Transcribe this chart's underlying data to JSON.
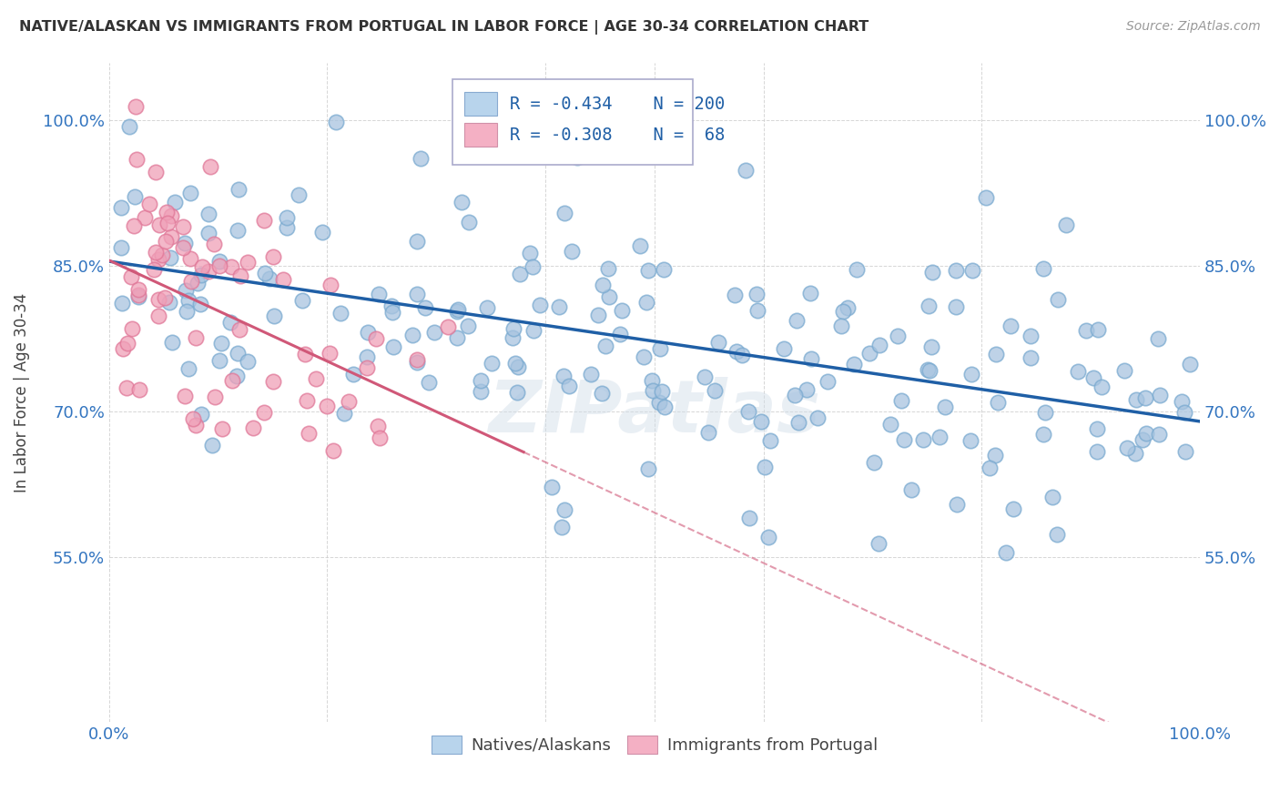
{
  "title": "NATIVE/ALASKAN VS IMMIGRANTS FROM PORTUGAL IN LABOR FORCE | AGE 30-34 CORRELATION CHART",
  "source": "Source: ZipAtlas.com",
  "ylabel": "In Labor Force | Age 30-34",
  "xlim": [
    0.0,
    1.0
  ],
  "ylim": [
    0.38,
    1.06
  ],
  "ytick_positions": [
    0.55,
    0.7,
    0.85,
    1.0
  ],
  "ytick_labels": [
    "55.0%",
    "70.0%",
    "85.0%",
    "100.0%"
  ],
  "blue_color": "#a8c4e0",
  "pink_color": "#f0a0b8",
  "blue_edge_color": "#7aaad0",
  "pink_edge_color": "#e07898",
  "blue_line_color": "#1f5fa6",
  "pink_line_color": "#d05878",
  "legend_blue_fill": "#b8d4ec",
  "legend_pink_fill": "#f4b0c4",
  "R_blue": -0.434,
  "N_blue": 200,
  "R_pink": -0.308,
  "N_pink": 68,
  "watermark": "ZIPatlas",
  "blue_seed": 42,
  "pink_seed": 99,
  "blue_intercept": 0.855,
  "blue_slope": -0.165,
  "pink_intercept": 0.856,
  "pink_slope": -0.52
}
